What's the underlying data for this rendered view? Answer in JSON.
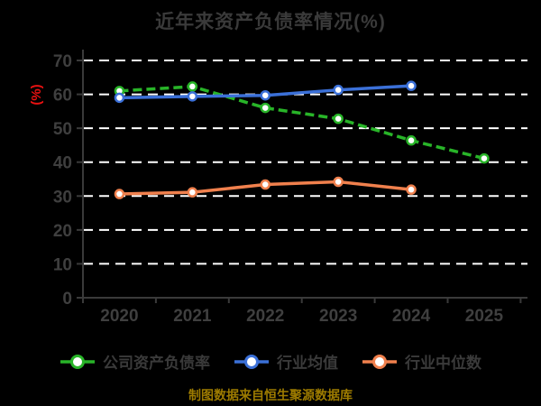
{
  "title": "近年来资产负债率情况(%)",
  "footer": "制图数据来自恒生聚源数据库",
  "colors": {
    "background": "#000000",
    "title_text": "#3a3a3a",
    "axis": "#3a3a3a",
    "tick_label": "#3f3f3f",
    "gridline": "#ffffff",
    "ylabel_red": "#e81111",
    "footer_gold": "#9d7b00",
    "legend_text": "#3a3a3a",
    "marker_fill": "#ffffff"
  },
  "chart_data": {
    "type": "line",
    "title": "近年来资产负债率情况(%)",
    "ylabel": "(%)",
    "xlabel": "",
    "ylim": [
      0,
      70
    ],
    "y_ticks": [
      0,
      10,
      20,
      30,
      40,
      50,
      60,
      70
    ],
    "x_tick_labels": [
      "2020",
      "2021",
      "2022",
      "2023",
      "2024",
      "2025"
    ],
    "grid": "horizontal white dashed lines",
    "legend_position": "bottom",
    "series": [
      {
        "name": "公司资产负债率",
        "color": "#28b428",
        "style": "dashed",
        "marker": "circle-white-fill",
        "values": [
          61.0,
          62.3,
          56.0,
          52.8,
          46.4,
          41.1
        ]
      },
      {
        "name": "行业均值",
        "color": "#3b70d8",
        "style": "solid",
        "marker": "circle-white-fill",
        "values": [
          59.0,
          59.4,
          59.7,
          61.3,
          62.5,
          null
        ]
      },
      {
        "name": "行业中位数",
        "color": "#f0804d",
        "style": "solid",
        "marker": "circle-white-fill",
        "values": [
          30.6,
          31.1,
          33.4,
          34.2,
          31.9,
          null
        ]
      }
    ]
  }
}
